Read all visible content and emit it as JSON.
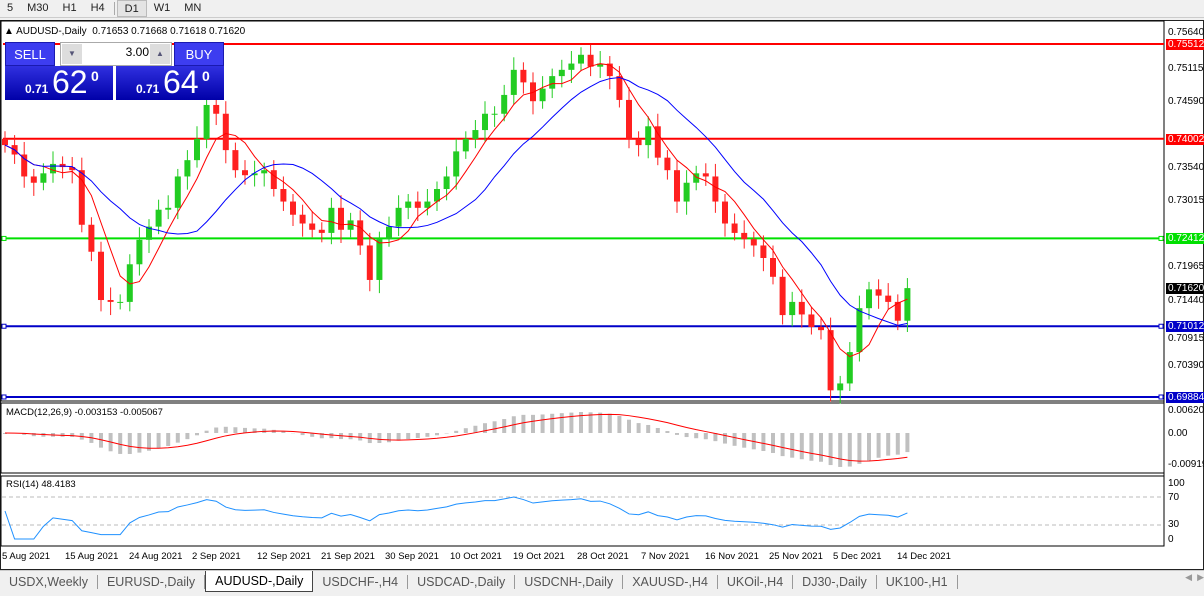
{
  "timeframes": [
    "5",
    "M30",
    "H1",
    "H4",
    "D1",
    "W1",
    "MN"
  ],
  "selected_timeframe": "D1",
  "chart": {
    "title": "AUDUSD-,Daily",
    "ohlc_text": "0.71653 0.71668 0.71618 0.71620"
  },
  "trade": {
    "sell": "SELL",
    "buy": "BUY",
    "lot": "3.00",
    "sell_small": "0.71",
    "sell_big": "62",
    "sell_pip": "0",
    "buy_small": "0.71",
    "buy_big": "64",
    "buy_pip": "0",
    "down": "▼",
    "up": "▲"
  },
  "price_axis": [
    "0.75640",
    "0.75115",
    "0.74590",
    "0.73540",
    "0.73015",
    "0.71965",
    "0.71440",
    "0.70915",
    "0.70390"
  ],
  "levels": [
    {
      "value": "0.75512",
      "color": "#ff0000"
    },
    {
      "value": "0.74002",
      "color": "#ff0000"
    },
    {
      "value": "0.72412",
      "color": "#00e000"
    },
    {
      "value": "0.71012",
      "color": "#0000c8"
    },
    {
      "value": "0.69884",
      "color": "#0000c8"
    }
  ],
  "current_price": "0.71620",
  "macd": {
    "label": "MACD(12,26,9) -0.003153 -0.005067",
    "axis": [
      "0.006201",
      "0.00",
      "-0.00919"
    ]
  },
  "rsi": {
    "label": "RSI(14) 48.4183",
    "axis": [
      "100",
      "70",
      "30",
      "0"
    ]
  },
  "dates": [
    "5 Aug 2021",
    "15 Aug 2021",
    "24 Aug 2021",
    "2 Sep 2021",
    "12 Sep 2021",
    "21 Sep 2021",
    "30 Sep 2021",
    "10 Oct 2021",
    "19 Oct 2021",
    "28 Oct 2021",
    "7 Nov 2021",
    "16 Nov 2021",
    "25 Nov 2021",
    "5 Dec 2021",
    "14 Dec 2021"
  ],
  "tabs": [
    "USDX,Weekly",
    "EURUSD-,Daily",
    "AUDUSD-,Daily",
    "USDCHF-,H4",
    "USDCAD-,Daily",
    "USDCNH-,Daily",
    "XAUUSD-,H4",
    "UKOil-,H4",
    "DJ30-,Daily",
    "UK100-,H1"
  ],
  "active_tab": "AUDUSD-,Daily",
  "colors": {
    "bull": "#22cc22",
    "bear": "#ff2020",
    "ma_fast": "#ff0000",
    "ma_slow": "#0000ff",
    "rsi": "#1e90ff",
    "macd_hist": "#c0c0c0",
    "macd_signal": "#ff0000"
  },
  "chart_data": {
    "type": "candlestick",
    "closes": [
      0.739,
      0.7375,
      0.734,
      0.733,
      0.7345,
      0.736,
      0.7355,
      0.735,
      0.7263,
      0.722,
      0.7143,
      0.714,
      0.714,
      0.72,
      0.7239,
      0.726,
      0.7287,
      0.729,
      0.734,
      0.7366,
      0.74,
      0.7454,
      0.744,
      0.7382,
      0.735,
      0.7342,
      0.7345,
      0.735,
      0.732,
      0.73,
      0.7279,
      0.7265,
      0.7255,
      0.725,
      0.729,
      0.7255,
      0.727,
      0.723,
      0.7175,
      0.724,
      0.726,
      0.729,
      0.73,
      0.729,
      0.73,
      0.732,
      0.734,
      0.738,
      0.74,
      0.7414,
      0.744,
      0.744,
      0.747,
      0.751,
      0.749,
      0.746,
      0.748,
      0.75,
      0.751,
      0.752,
      0.7534,
      0.7515,
      0.752,
      0.75,
      0.7462,
      0.74,
      0.739,
      0.742,
      0.737,
      0.735,
      0.73,
      0.733,
      0.7345,
      0.734,
      0.73,
      0.7265,
      0.725,
      0.724,
      0.723,
      0.721,
      0.718,
      0.7119,
      0.714,
      0.712,
      0.71,
      0.7095,
      0.6999,
      0.701,
      0.706,
      0.713,
      0.716,
      0.715,
      0.714,
      0.711,
      0.7162
    ]
  }
}
